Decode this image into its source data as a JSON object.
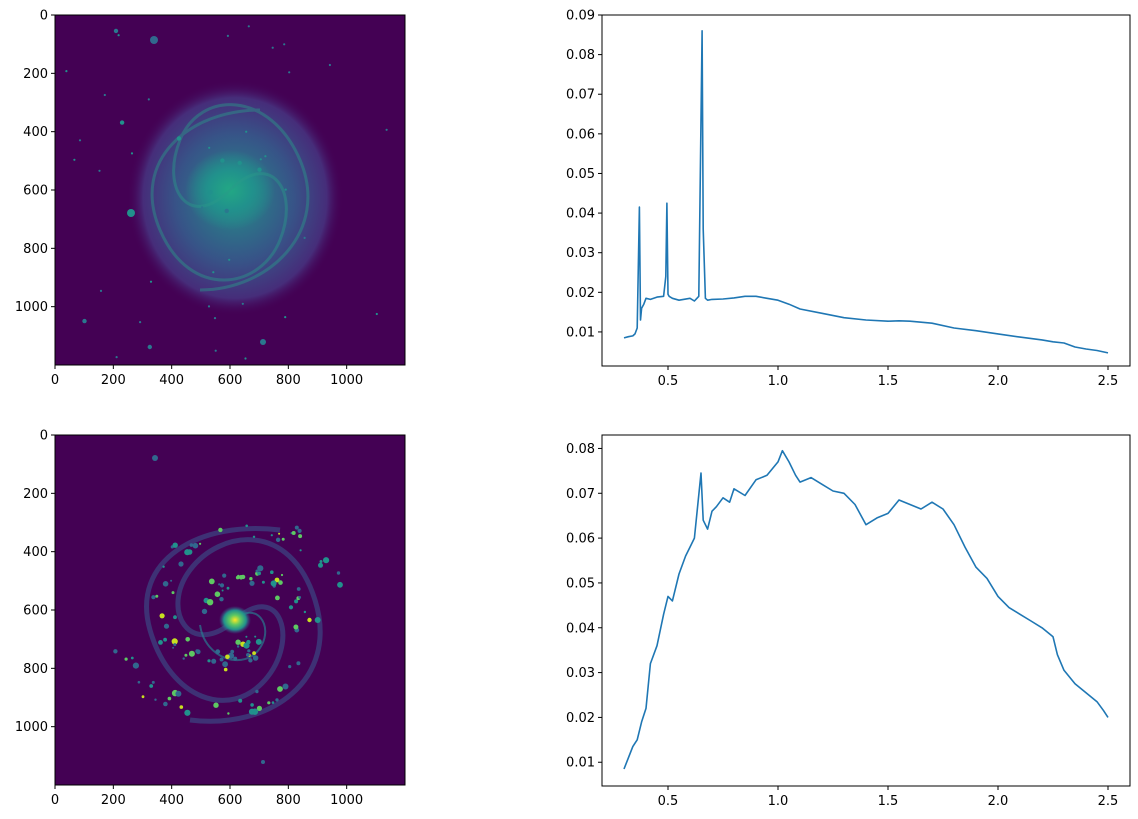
{
  "figure": {
    "description_colors": {
      "line": "#1f77b4",
      "image_background": "#440154",
      "image_mid": "#2a788e",
      "image_bright": "#fde725",
      "axes": "#000000"
    }
  },
  "chart_data": [
    {
      "type": "heatmap",
      "panel": "top-left",
      "colormap": "viridis",
      "xlim": [
        0,
        1200
      ],
      "ylim": [
        1200,
        0
      ],
      "x_ticks": [
        0,
        200,
        400,
        600,
        800,
        1000
      ],
      "y_ticks": [
        0,
        200,
        400,
        600,
        800,
        1000
      ],
      "x_tick_labels": [
        "0",
        "200",
        "400",
        "600",
        "800",
        "1000"
      ],
      "y_tick_labels": [
        "0",
        "200",
        "400",
        "600",
        "800",
        "1000"
      ],
      "grid": false,
      "content": "spiral galaxy image, broad diffuse emission, bright compact core"
    },
    {
      "type": "line",
      "panel": "top-right",
      "series": [
        {
          "x": [
            0.3,
            0.32,
            0.34,
            0.35,
            0.36,
            0.37,
            0.375,
            0.38,
            0.39,
            0.4,
            0.42,
            0.45,
            0.48,
            0.49,
            0.495,
            0.5,
            0.505,
            0.52,
            0.55,
            0.6,
            0.62,
            0.64,
            0.655,
            0.66,
            0.67,
            0.68,
            0.7,
            0.75,
            0.8,
            0.85,
            0.9,
            0.95,
            1.0,
            1.05,
            1.1,
            1.2,
            1.3,
            1.4,
            1.5,
            1.55,
            1.6,
            1.7,
            1.8,
            1.9,
            2.0,
            2.1,
            2.2,
            2.25,
            2.3,
            2.35,
            2.4,
            2.45,
            2.5
          ],
          "y": [
            0.0085,
            0.0088,
            0.009,
            0.0095,
            0.011,
            0.0415,
            0.013,
            0.016,
            0.017,
            0.0185,
            0.0182,
            0.0188,
            0.019,
            0.024,
            0.0425,
            0.0195,
            0.019,
            0.0185,
            0.018,
            0.0185,
            0.0178,
            0.019,
            0.086,
            0.036,
            0.0185,
            0.018,
            0.0182,
            0.0183,
            0.0186,
            0.019,
            0.019,
            0.0185,
            0.018,
            0.017,
            0.0158,
            0.0147,
            0.0136,
            0.013,
            0.0127,
            0.0128,
            0.0127,
            0.0122,
            0.011,
            0.0103,
            0.0095,
            0.0087,
            0.008,
            0.0075,
            0.0072,
            0.0062,
            0.0057,
            0.0053,
            0.0047
          ]
        }
      ],
      "xlim": [
        0.2,
        2.6
      ],
      "ylim": [
        0.0014,
        0.09
      ],
      "x_ticks": [
        0.5,
        1.0,
        1.5,
        2.0,
        2.5
      ],
      "y_ticks": [
        0.01,
        0.02,
        0.03,
        0.04,
        0.05,
        0.06,
        0.07,
        0.08,
        0.09
      ],
      "x_tick_labels": [
        "0.5",
        "1.0",
        "1.5",
        "2.0",
        "2.5"
      ],
      "y_tick_labels": [
        "0.01",
        "0.02",
        "0.03",
        "0.04",
        "0.05",
        "0.06",
        "0.07",
        "0.08",
        "0.09"
      ],
      "grid": false
    },
    {
      "type": "heatmap",
      "panel": "bottom-left",
      "colormap": "viridis",
      "xlim": [
        0,
        1200
      ],
      "ylim": [
        1200,
        0
      ],
      "x_ticks": [
        0,
        200,
        400,
        600,
        800,
        1000
      ],
      "y_ticks": [
        0,
        200,
        400,
        600,
        800,
        1000
      ],
      "x_tick_labels": [
        "0",
        "200",
        "400",
        "600",
        "800",
        "1000"
      ],
      "y_tick_labels": [
        "0",
        "200",
        "400",
        "600",
        "800",
        "1000"
      ],
      "grid": false,
      "content": "spiral galaxy image, clumpy star-forming knots along spiral arms, bright core"
    },
    {
      "type": "line",
      "panel": "bottom-right",
      "series": [
        {
          "x": [
            0.3,
            0.32,
            0.34,
            0.36,
            0.38,
            0.4,
            0.42,
            0.45,
            0.48,
            0.5,
            0.52,
            0.55,
            0.58,
            0.6,
            0.62,
            0.65,
            0.66,
            0.68,
            0.7,
            0.72,
            0.75,
            0.78,
            0.8,
            0.85,
            0.9,
            0.95,
            1.0,
            1.02,
            1.05,
            1.08,
            1.1,
            1.15,
            1.2,
            1.25,
            1.3,
            1.35,
            1.4,
            1.45,
            1.5,
            1.55,
            1.6,
            1.65,
            1.7,
            1.75,
            1.8,
            1.85,
            1.9,
            1.95,
            2.0,
            2.05,
            2.1,
            2.15,
            2.2,
            2.25,
            2.27,
            2.3,
            2.35,
            2.4,
            2.45,
            2.48,
            2.5
          ],
          "y": [
            0.0085,
            0.011,
            0.0135,
            0.015,
            0.019,
            0.022,
            0.032,
            0.036,
            0.043,
            0.047,
            0.046,
            0.052,
            0.056,
            0.058,
            0.06,
            0.0745,
            0.064,
            0.062,
            0.066,
            0.067,
            0.069,
            0.068,
            0.071,
            0.0695,
            0.073,
            0.074,
            0.077,
            0.0795,
            0.077,
            0.074,
            0.0725,
            0.0735,
            0.072,
            0.0705,
            0.07,
            0.0675,
            0.063,
            0.0645,
            0.0655,
            0.0685,
            0.0675,
            0.0665,
            0.068,
            0.0665,
            0.063,
            0.058,
            0.0535,
            0.051,
            0.047,
            0.0445,
            0.043,
            0.0415,
            0.04,
            0.038,
            0.034,
            0.0305,
            0.0275,
            0.0255,
            0.0235,
            0.0215,
            0.02
          ]
        }
      ],
      "xlim": [
        0.2,
        2.6
      ],
      "ylim": [
        0.0047,
        0.083
      ],
      "x_ticks": [
        0.5,
        1.0,
        1.5,
        2.0,
        2.5
      ],
      "y_ticks": [
        0.01,
        0.02,
        0.03,
        0.04,
        0.05,
        0.06,
        0.07,
        0.08
      ],
      "x_tick_labels": [
        "0.5",
        "1.0",
        "1.5",
        "2.0",
        "2.5"
      ],
      "y_tick_labels": [
        "0.01",
        "0.02",
        "0.03",
        "0.04",
        "0.05",
        "0.06",
        "0.07",
        "0.08"
      ],
      "grid": false
    }
  ]
}
